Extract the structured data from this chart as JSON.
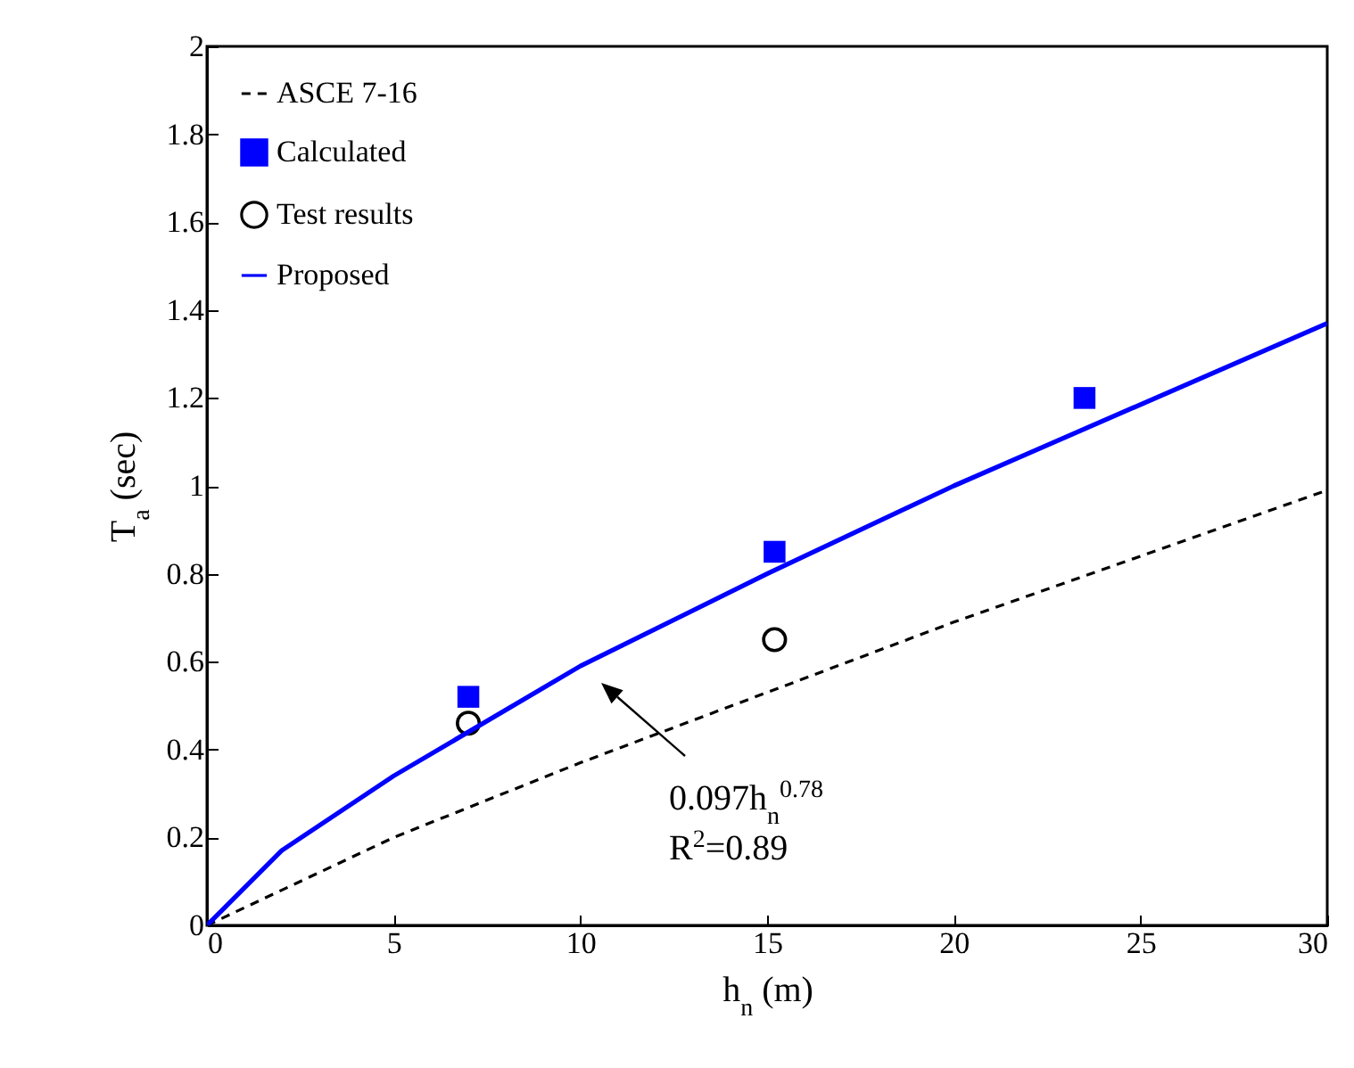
{
  "chart_data": {
    "type": "line",
    "xlabel": "h$_{n}$ (m)",
    "ylabel": "T$_{a}$ (sec)",
    "xlim": [
      0,
      30
    ],
    "xticks": [
      0,
      5,
      10,
      15,
      20,
      25,
      30
    ],
    "ylim": [
      0,
      2
    ],
    "yticks": [
      0,
      0.2,
      0.4,
      0.6,
      0.8,
      1,
      1.2,
      1.4,
      1.6,
      1.8,
      2
    ],
    "grid": false,
    "legend": "top left",
    "series": [
      {
        "name": "ASCE 7-16",
        "type": "line",
        "color": "#000000",
        "line_style": "dashed",
        "x": [
          0,
          5,
          10,
          15,
          20,
          25,
          30
        ],
        "values": [
          0,
          0.2,
          0.37,
          0.53,
          0.69,
          0.84,
          0.99
        ]
      },
      {
        "name": "Calculated",
        "type": "scatter",
        "marker": "square",
        "color": "#0000ff",
        "x": [
          7,
          15.2,
          23.5
        ],
        "values": [
          0.52,
          0.85,
          1.2
        ]
      },
      {
        "name": "Test results",
        "type": "scatter",
        "marker": "circle",
        "color": "#000000",
        "x": [
          7,
          15.2
        ],
        "values": [
          0.46,
          0.65
        ]
      },
      {
        "name": "Proposed",
        "type": "line",
        "color": "#0000ff",
        "line_style": "solid",
        "x": [
          0,
          2,
          5,
          10,
          15,
          20,
          30
        ],
        "values": [
          0,
          0.17,
          0.34,
          0.59,
          0.8,
          1.0,
          1.37
        ]
      }
    ],
    "annotations": [
      "0.097h$_{n}$$^{0.78}$",
      "R$^{2}$=0.89"
    ]
  }
}
